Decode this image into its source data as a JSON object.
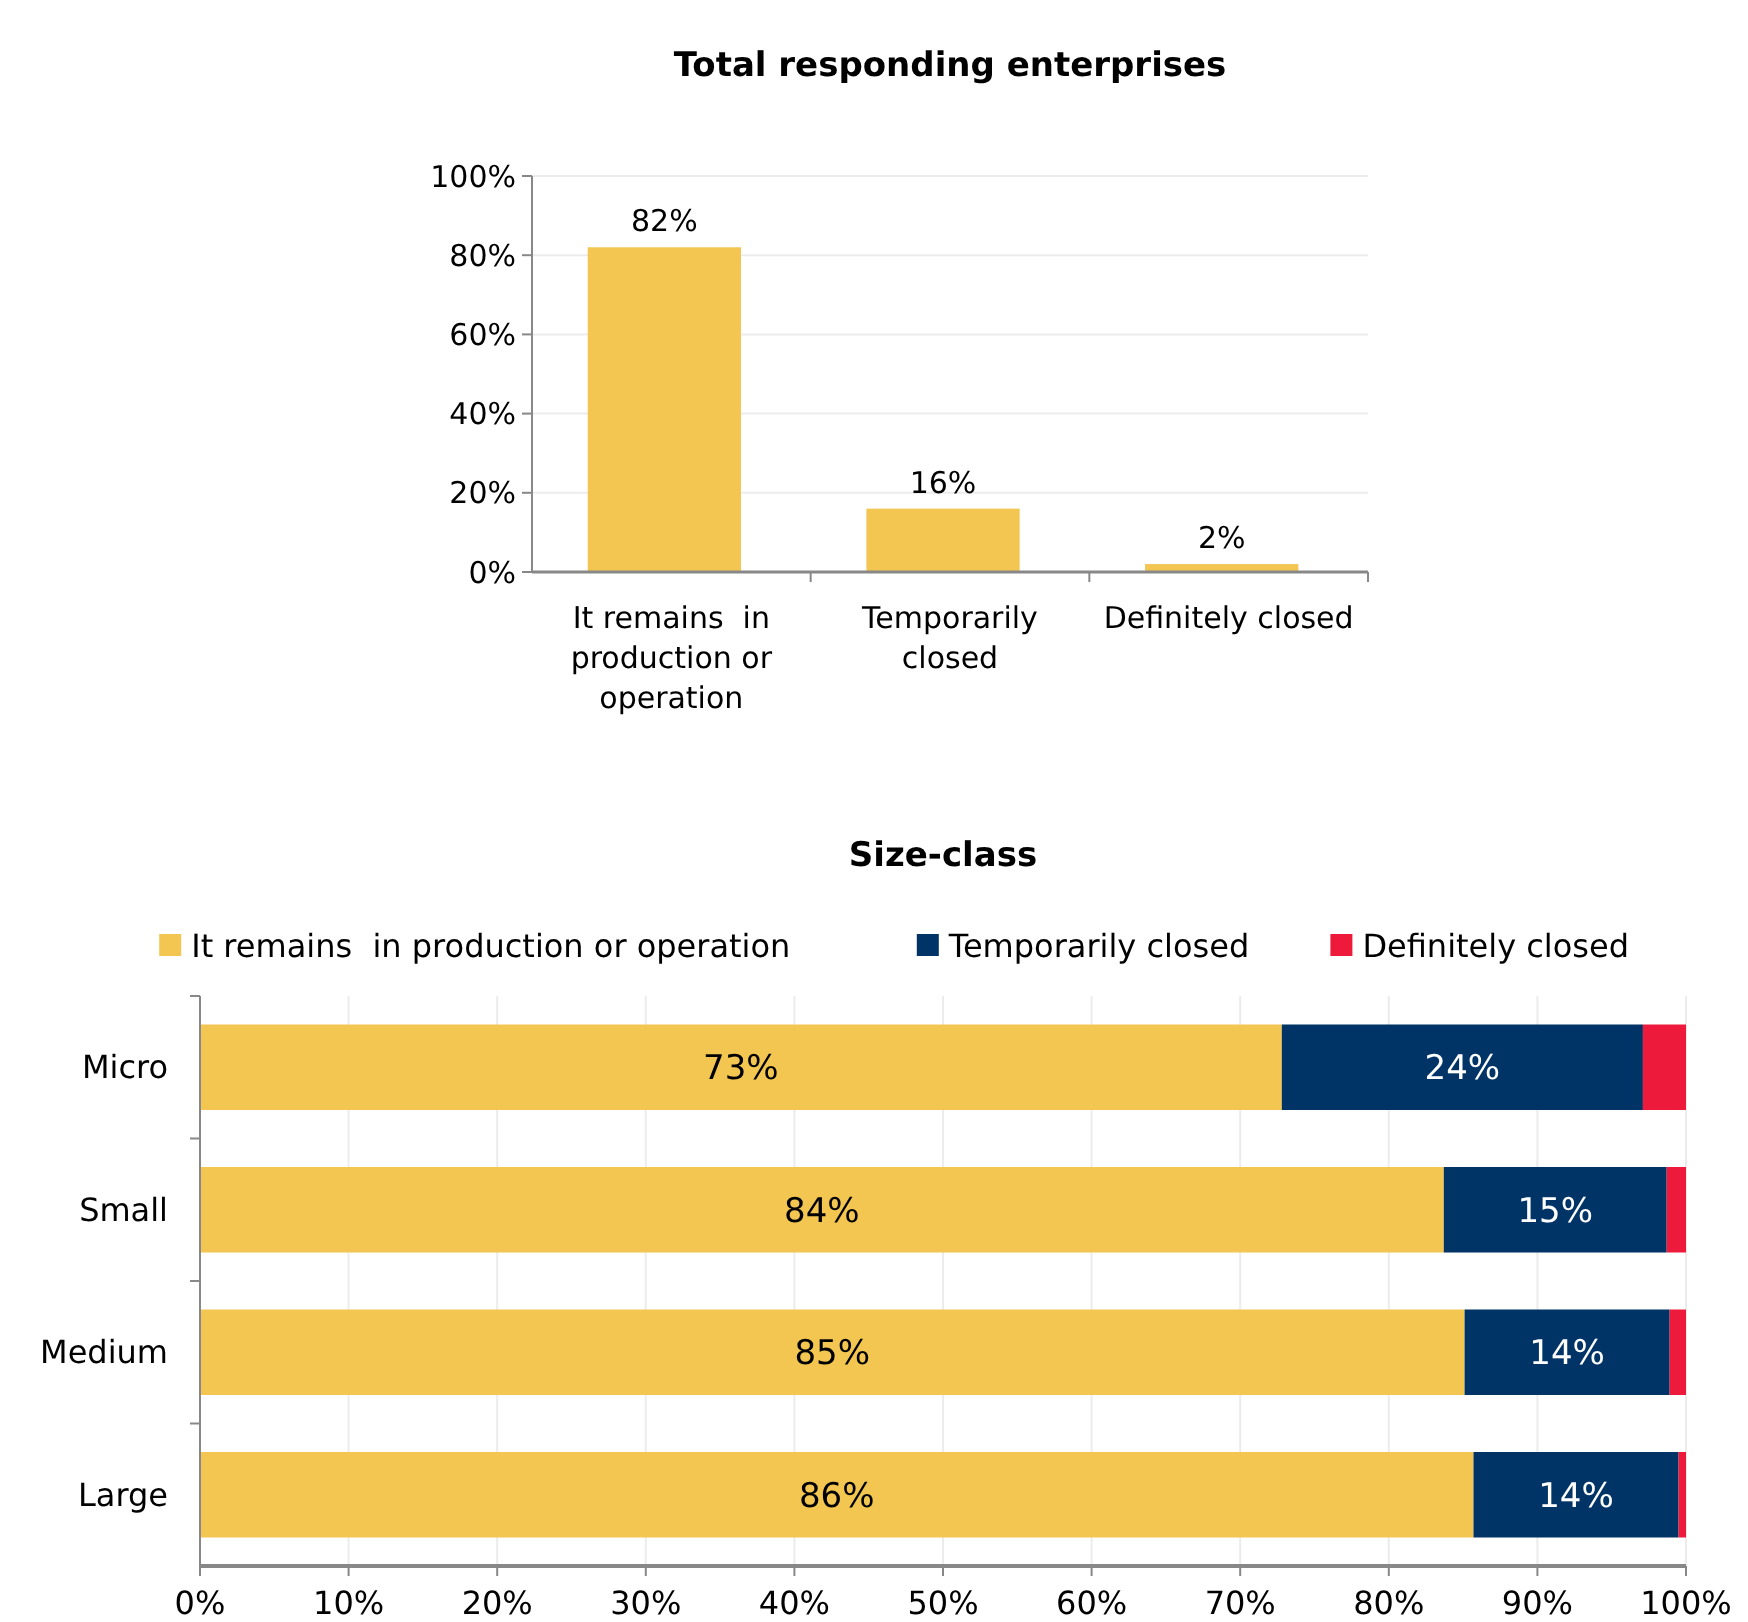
{
  "chart_data": [
    {
      "type": "bar",
      "title": "Total responding enterprises",
      "categories": [
        "It remains  in production or operation",
        "Temporarily closed",
        "Definitely closed"
      ],
      "values": [
        82,
        16,
        2
      ],
      "color": "#f2c650",
      "value_labels": [
        "82%",
        "16%",
        "2%"
      ],
      "ylim": [
        0,
        100
      ],
      "yticks": [
        {
          "value": 0,
          "label": "0%"
        },
        {
          "value": 20,
          "label": "20%"
        },
        {
          "value": 40,
          "label": "40%"
        },
        {
          "value": 60,
          "label": "60%"
        },
        {
          "value": 80,
          "label": "80%"
        },
        {
          "value": 100,
          "label": "100%"
        }
      ],
      "grid": "y"
    },
    {
      "type": "bar",
      "title": "Size-class",
      "orientation": "horizontal",
      "stacked": true,
      "categories": [
        "Micro",
        "Small",
        "Medium",
        "Large"
      ],
      "series": [
        {
          "name": "It remains  in production or operation",
          "color": "#f2c650",
          "values": [
            72.8,
            83.7,
            85.1,
            85.7
          ],
          "value_labels": [
            "73%",
            "84%",
            "85%",
            "86%"
          ]
        },
        {
          "name": "Temporarily closed",
          "color": "#003366",
          "values": [
            24.3,
            15.0,
            13.8,
            13.8
          ],
          "value_labels": [
            "24%",
            "15%",
            "14%",
            "14%"
          ]
        },
        {
          "name": "Definitely closed",
          "color": "#ee1a3c",
          "values": [
            2.9,
            1.3,
            1.1,
            0.5
          ]
        }
      ],
      "xlim": [
        0,
        100
      ],
      "xticks": [
        {
          "value": 0,
          "label": "0%"
        },
        {
          "value": 10,
          "label": "10%"
        },
        {
          "value": 20,
          "label": "20%"
        },
        {
          "value": 30,
          "label": "30%"
        },
        {
          "value": 40,
          "label": "40%"
        },
        {
          "value": 50,
          "label": "50%"
        },
        {
          "value": 60,
          "label": "60%"
        },
        {
          "value": 70,
          "label": "70%"
        },
        {
          "value": 80,
          "label": "80%"
        },
        {
          "value": 90,
          "label": "90%"
        },
        {
          "value": 100,
          "label": "100%"
        }
      ],
      "grid": "x",
      "legend": "top"
    }
  ]
}
